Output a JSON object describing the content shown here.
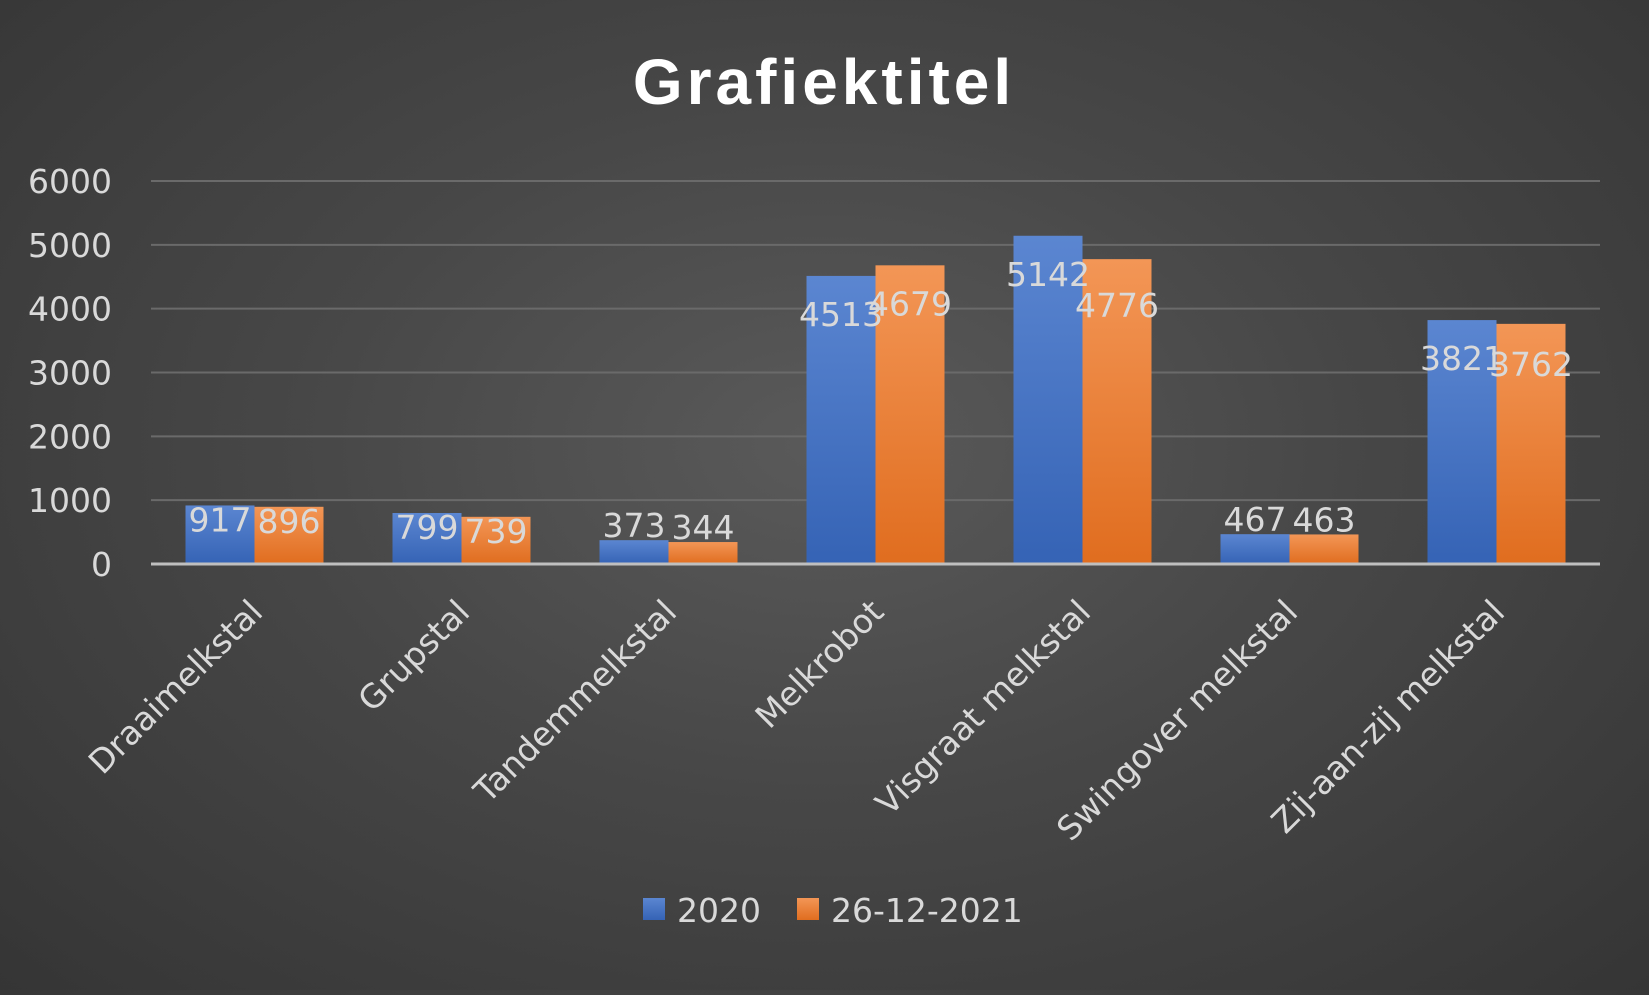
{
  "chart_data": {
    "type": "bar",
    "title": "Grafiektitel",
    "xlabel": "",
    "ylabel": "",
    "categories": [
      "Draaimelkstal",
      "Grupstal",
      "Tandemmelkstal",
      "Melkrobot",
      "Visgraat melkstal",
      "Swingover melkstal",
      "Zij-aan-zij melkstal"
    ],
    "series": [
      {
        "name": "2020",
        "values": [
          917,
          799,
          373,
          4513,
          5142,
          467,
          3821
        ],
        "color": "#4472c4"
      },
      {
        "name": "26-12-2021",
        "values": [
          896,
          739,
          344,
          4679,
          4776,
          463,
          3762
        ],
        "color": "#ed7d31"
      }
    ],
    "ylim": [
      0,
      6000
    ],
    "yticks": [
      0,
      1000,
      2000,
      3000,
      4000,
      5000,
      6000
    ],
    "grid": true,
    "legend": "bottom",
    "data_labels": true
  },
  "colors": {
    "text": "#d9d9d9",
    "title": "#ffffff",
    "grid": "#6a6a6a",
    "axis": "#bfbfbf"
  }
}
